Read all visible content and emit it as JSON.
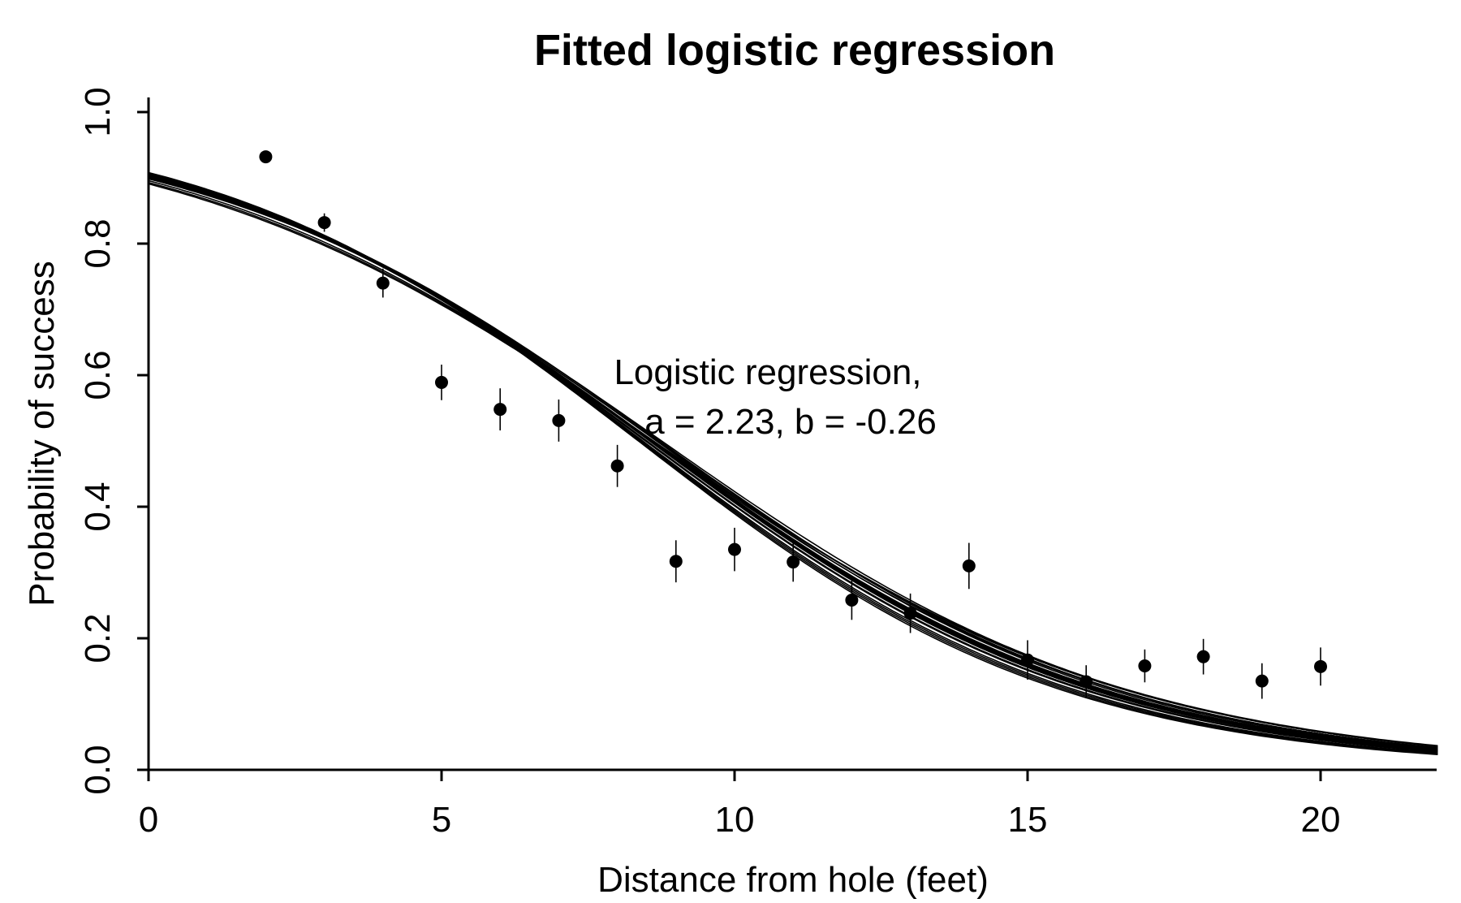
{
  "chart_data": {
    "type": "scatter",
    "title": "Fitted logistic regression",
    "xlabel": "Distance from hole (feet)",
    "ylabel": "Probability of success",
    "xlim": [
      0,
      22
    ],
    "ylim": [
      0,
      1
    ],
    "xticks": [
      "0",
      "5",
      "10",
      "15",
      "20"
    ],
    "yticks": [
      "0.0",
      "0.2",
      "0.4",
      "0.6",
      "0.8",
      "1.0"
    ],
    "annotation": [
      "Logistic regression,",
      "a = 2.23, b = -0.26"
    ],
    "points": [
      {
        "x": 2,
        "y": 0.932,
        "lo": 0.932,
        "hi": 0.932
      },
      {
        "x": 3,
        "y": 0.832,
        "lo": 0.818,
        "hi": 0.846
      },
      {
        "x": 4,
        "y": 0.74,
        "lo": 0.718,
        "hi": 0.762
      },
      {
        "x": 5,
        "y": 0.589,
        "lo": 0.562,
        "hi": 0.616
      },
      {
        "x": 6,
        "y": 0.548,
        "lo": 0.516,
        "hi": 0.58
      },
      {
        "x": 7,
        "y": 0.531,
        "lo": 0.499,
        "hi": 0.563
      },
      {
        "x": 8,
        "y": 0.462,
        "lo": 0.43,
        "hi": 0.494
      },
      {
        "x": 9,
        "y": 0.317,
        "lo": 0.285,
        "hi": 0.349
      },
      {
        "x": 10,
        "y": 0.335,
        "lo": 0.302,
        "hi": 0.368
      },
      {
        "x": 11,
        "y": 0.316,
        "lo": 0.286,
        "hi": 0.346
      },
      {
        "x": 12,
        "y": 0.258,
        "lo": 0.228,
        "hi": 0.288
      },
      {
        "x": 13,
        "y": 0.238,
        "lo": 0.208,
        "hi": 0.268
      },
      {
        "x": 14,
        "y": 0.31,
        "lo": 0.275,
        "hi": 0.345
      },
      {
        "x": 15,
        "y": 0.167,
        "lo": 0.137,
        "hi": 0.197
      },
      {
        "x": 16,
        "y": 0.134,
        "lo": 0.109,
        "hi": 0.159
      },
      {
        "x": 17,
        "y": 0.158,
        "lo": 0.133,
        "hi": 0.183
      },
      {
        "x": 18,
        "y": 0.172,
        "lo": 0.145,
        "hi": 0.199
      },
      {
        "x": 19,
        "y": 0.135,
        "lo": 0.108,
        "hi": 0.162
      },
      {
        "x": 20,
        "y": 0.157,
        "lo": 0.128,
        "hi": 0.186
      }
    ],
    "curves": [
      {
        "a": 2.23,
        "b": -0.26
      },
      {
        "a": 2.22,
        "b": -0.258
      },
      {
        "a": 2.24,
        "b": -0.262
      },
      {
        "a": 2.21,
        "b": -0.255
      },
      {
        "a": 2.25,
        "b": -0.265
      },
      {
        "a": 2.19,
        "b": -0.252
      },
      {
        "a": 2.26,
        "b": -0.268
      },
      {
        "a": 2.18,
        "b": -0.249
      },
      {
        "a": 2.27,
        "b": -0.27
      },
      {
        "a": 2.2,
        "b": -0.256
      },
      {
        "a": 2.235,
        "b": -0.261
      },
      {
        "a": 2.225,
        "b": -0.259
      },
      {
        "a": 2.215,
        "b": -0.254
      },
      {
        "a": 2.245,
        "b": -0.264
      },
      {
        "a": 2.1,
        "b": -0.244
      },
      {
        "a": 2.12,
        "b": -0.246
      },
      {
        "a": 2.15,
        "b": -0.25
      },
      {
        "a": 2.28,
        "b": -0.272
      },
      {
        "a": 2.29,
        "b": -0.274
      },
      {
        "a": 2.23,
        "b": -0.263
      }
    ]
  }
}
